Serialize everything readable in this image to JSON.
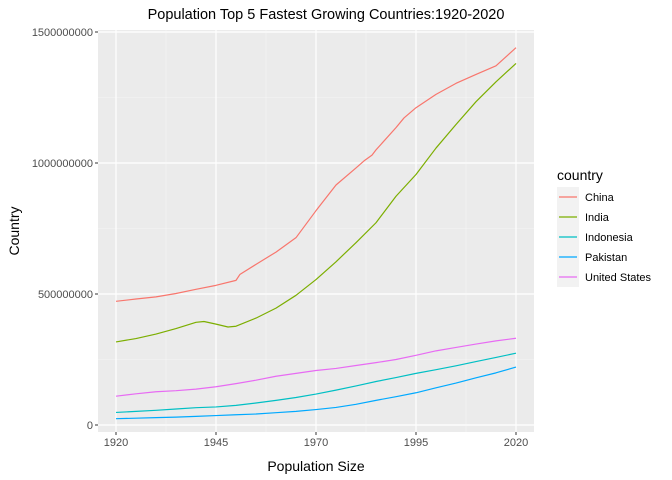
{
  "chart_data": {
    "type": "line",
    "title": "Population Top 5 Fastest Growing Countries:1920-2020",
    "xlabel": "Population Size",
    "ylabel": "Country",
    "xlim": [
      1920,
      2020
    ],
    "ylim": [
      0,
      1500000000
    ],
    "x_ticks": [
      1920,
      1945,
      1970,
      1995,
      2020
    ],
    "y_ticks": [
      0,
      500000000,
      1000000000,
      1500000000
    ],
    "y_tick_labels": [
      "0",
      "500000000",
      "1000000000",
      "1500000000"
    ],
    "grid": true,
    "legend": {
      "title": "country",
      "position": "right"
    },
    "series": [
      {
        "name": "China",
        "color": "#F8766D",
        "points": [
          [
            1920,
            472000000
          ],
          [
            1925,
            481000000
          ],
          [
            1930,
            489000000
          ],
          [
            1935,
            502000000
          ],
          [
            1940,
            518000000
          ],
          [
            1945,
            533000000
          ],
          [
            1950,
            552000000
          ],
          [
            1951,
            575000000
          ],
          [
            1955,
            613000000
          ],
          [
            1960,
            660000000
          ],
          [
            1965,
            715000000
          ],
          [
            1970,
            818000000
          ],
          [
            1975,
            916000000
          ],
          [
            1980,
            981000000
          ],
          [
            1982,
            1008000000
          ],
          [
            1984,
            1030000000
          ],
          [
            1985,
            1050000000
          ],
          [
            1990,
            1135000000
          ],
          [
            1992,
            1172000000
          ],
          [
            1995,
            1211000000
          ],
          [
            2000,
            1262000000
          ],
          [
            2005,
            1304000000
          ],
          [
            2010,
            1338000000
          ],
          [
            2015,
            1371000000
          ],
          [
            2020,
            1440000000
          ]
        ]
      },
      {
        "name": "India",
        "color": "#7CAE00",
        "points": [
          [
            1920,
            317000000
          ],
          [
            1925,
            330000000
          ],
          [
            1930,
            347000000
          ],
          [
            1935,
            368000000
          ],
          [
            1940,
            392000000
          ],
          [
            1942,
            395000000
          ],
          [
            1945,
            385000000
          ],
          [
            1948,
            374000000
          ],
          [
            1950,
            377000000
          ],
          [
            1955,
            408000000
          ],
          [
            1960,
            446000000
          ],
          [
            1965,
            495000000
          ],
          [
            1970,
            555000000
          ],
          [
            1975,
            623000000
          ],
          [
            1980,
            696000000
          ],
          [
            1985,
            772000000
          ],
          [
            1990,
            873000000
          ],
          [
            1995,
            956000000
          ],
          [
            2000,
            1057000000
          ],
          [
            2005,
            1147000000
          ],
          [
            2010,
            1234000000
          ],
          [
            2015,
            1310000000
          ],
          [
            2020,
            1380000000
          ]
        ]
      },
      {
        "name": "Indonesia",
        "color": "#00BFC4",
        "points": [
          [
            1920,
            48000000
          ],
          [
            1925,
            52000000
          ],
          [
            1930,
            56000000
          ],
          [
            1935,
            61000000
          ],
          [
            1940,
            66000000
          ],
          [
            1945,
            69000000
          ],
          [
            1950,
            75000000
          ],
          [
            1955,
            84000000
          ],
          [
            1960,
            94000000
          ],
          [
            1965,
            105000000
          ],
          [
            1970,
            118000000
          ],
          [
            1975,
            133000000
          ],
          [
            1980,
            149000000
          ],
          [
            1985,
            166000000
          ],
          [
            1990,
            181000000
          ],
          [
            1995,
            197000000
          ],
          [
            2000,
            211000000
          ],
          [
            2005,
            226000000
          ],
          [
            2010,
            242000000
          ],
          [
            2015,
            258000000
          ],
          [
            2020,
            274000000
          ]
        ]
      },
      {
        "name": "Pakistan",
        "color": "#00A9FF",
        "points": [
          [
            1920,
            24000000
          ],
          [
            1925,
            26000000
          ],
          [
            1930,
            28000000
          ],
          [
            1935,
            30000000
          ],
          [
            1940,
            33000000
          ],
          [
            1945,
            36000000
          ],
          [
            1950,
            39000000
          ],
          [
            1955,
            42000000
          ],
          [
            1960,
            47000000
          ],
          [
            1965,
            52000000
          ],
          [
            1970,
            59000000
          ],
          [
            1975,
            67000000
          ],
          [
            1980,
            79000000
          ],
          [
            1985,
            94000000
          ],
          [
            1990,
            108000000
          ],
          [
            1995,
            123000000
          ],
          [
            2000,
            142000000
          ],
          [
            2005,
            160000000
          ],
          [
            2010,
            180000000
          ],
          [
            2015,
            199000000
          ],
          [
            2020,
            221000000
          ]
        ]
      },
      {
        "name": "United States",
        "color": "#E76BF3",
        "points": [
          [
            1920,
            110000000
          ],
          [
            1925,
            119000000
          ],
          [
            1930,
            127000000
          ],
          [
            1935,
            131000000
          ],
          [
            1940,
            137000000
          ],
          [
            1945,
            146000000
          ],
          [
            1950,
            158000000
          ],
          [
            1955,
            171000000
          ],
          [
            1960,
            186000000
          ],
          [
            1965,
            197000000
          ],
          [
            1970,
            208000000
          ],
          [
            1975,
            216000000
          ],
          [
            1980,
            227000000
          ],
          [
            1985,
            238000000
          ],
          [
            1990,
            250000000
          ],
          [
            1995,
            266000000
          ],
          [
            2000,
            283000000
          ],
          [
            2005,
            296000000
          ],
          [
            2010,
            309000000
          ],
          [
            2015,
            321000000
          ],
          [
            2020,
            331000000
          ]
        ]
      }
    ]
  }
}
